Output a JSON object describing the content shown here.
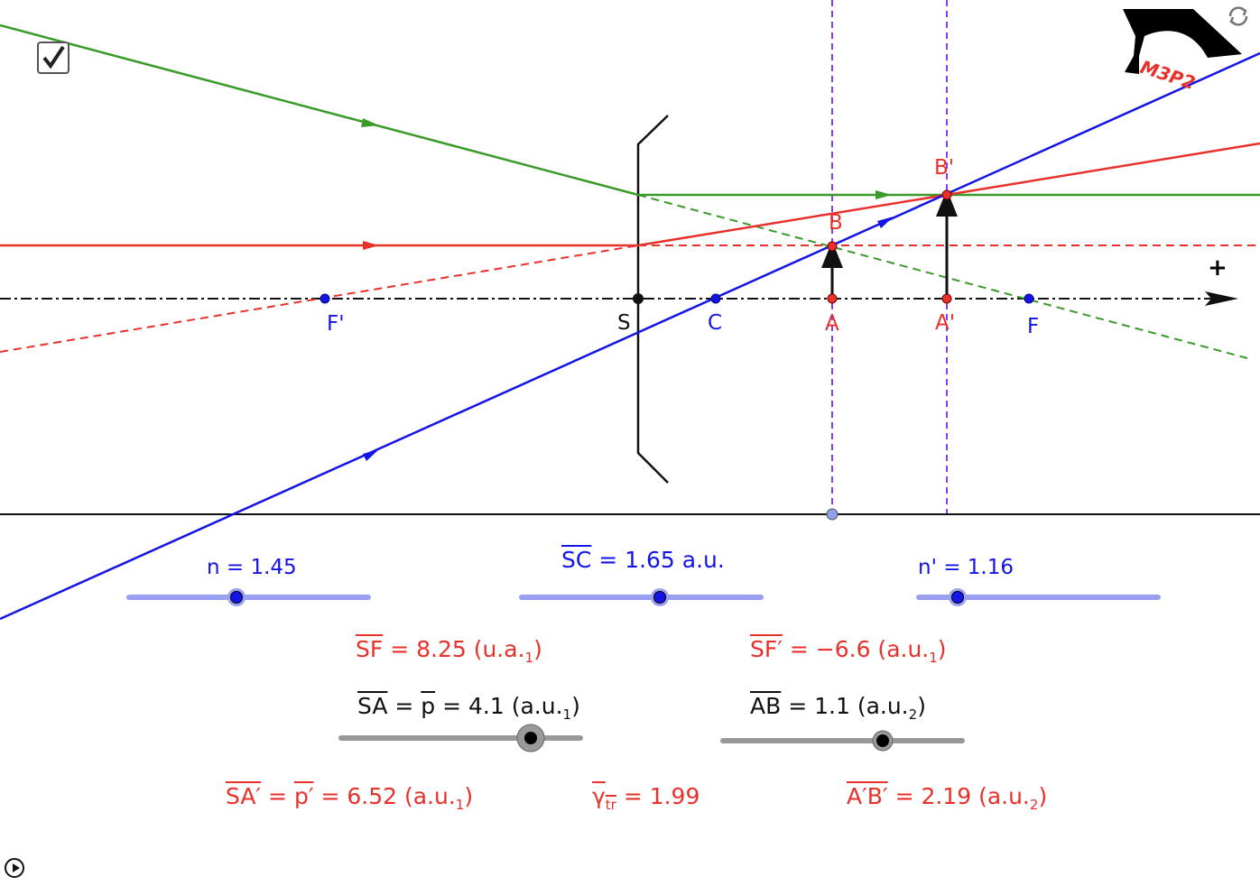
{
  "colors": {
    "blue": "#1414e6",
    "red": "#e8312a",
    "green": "#3a9a2a",
    "purple": "#8a3cf0",
    "slider_blue": "#9aa0f0",
    "slider_gray": "#999999"
  },
  "checkbox": {
    "checked": true,
    "icon": "check-icon"
  },
  "logo": {
    "text": "M3P2"
  },
  "reset_icon": "refresh-icon",
  "play_icon": "play-icon",
  "axis": {
    "plus_label": "+"
  },
  "points": {
    "F_prime": "F'",
    "S": "S",
    "C": "C",
    "A": "A",
    "A_prime": "A'",
    "F": "F",
    "B": "B",
    "B_prime": "B'"
  },
  "sliders": {
    "n": {
      "label": "n = 1.45",
      "value": 1.45
    },
    "SC": {
      "name": "SC",
      "text": "= 1.65 a.u.",
      "value": 1.65
    },
    "n_prime": {
      "label": "n' = 1.16",
      "value": 1.16
    },
    "SA": {
      "name": "SA",
      "p": "p",
      "text": "= 4.1 (a.u.",
      "sub": "1",
      "close": ")",
      "value": 4.1
    },
    "AB": {
      "name": "AB",
      "text": "=  1.1 (a.u.",
      "sub": "2",
      "close": ")",
      "value": 1.1
    }
  },
  "results": {
    "SF": {
      "name": "SF",
      "text": "= 8.25 (u.a.",
      "sub": "1",
      "close": ")"
    },
    "SF_prime": {
      "name": "SF′",
      "text": "= −6.6 (a.u.",
      "sub": "1",
      "close": ")"
    },
    "SA_prime": {
      "name": "SA′",
      "p": "p′",
      "text": "= 6.52 (a.u.",
      "sub": "1",
      "close": ")"
    },
    "gamma": {
      "name": "γ",
      "sub": "tr",
      "text": "= 1.99"
    },
    "A_prime_B_prime": {
      "name": "A′B′",
      "text": "= 2.19 (a.u.",
      "sub": "2",
      "close": ")"
    }
  }
}
